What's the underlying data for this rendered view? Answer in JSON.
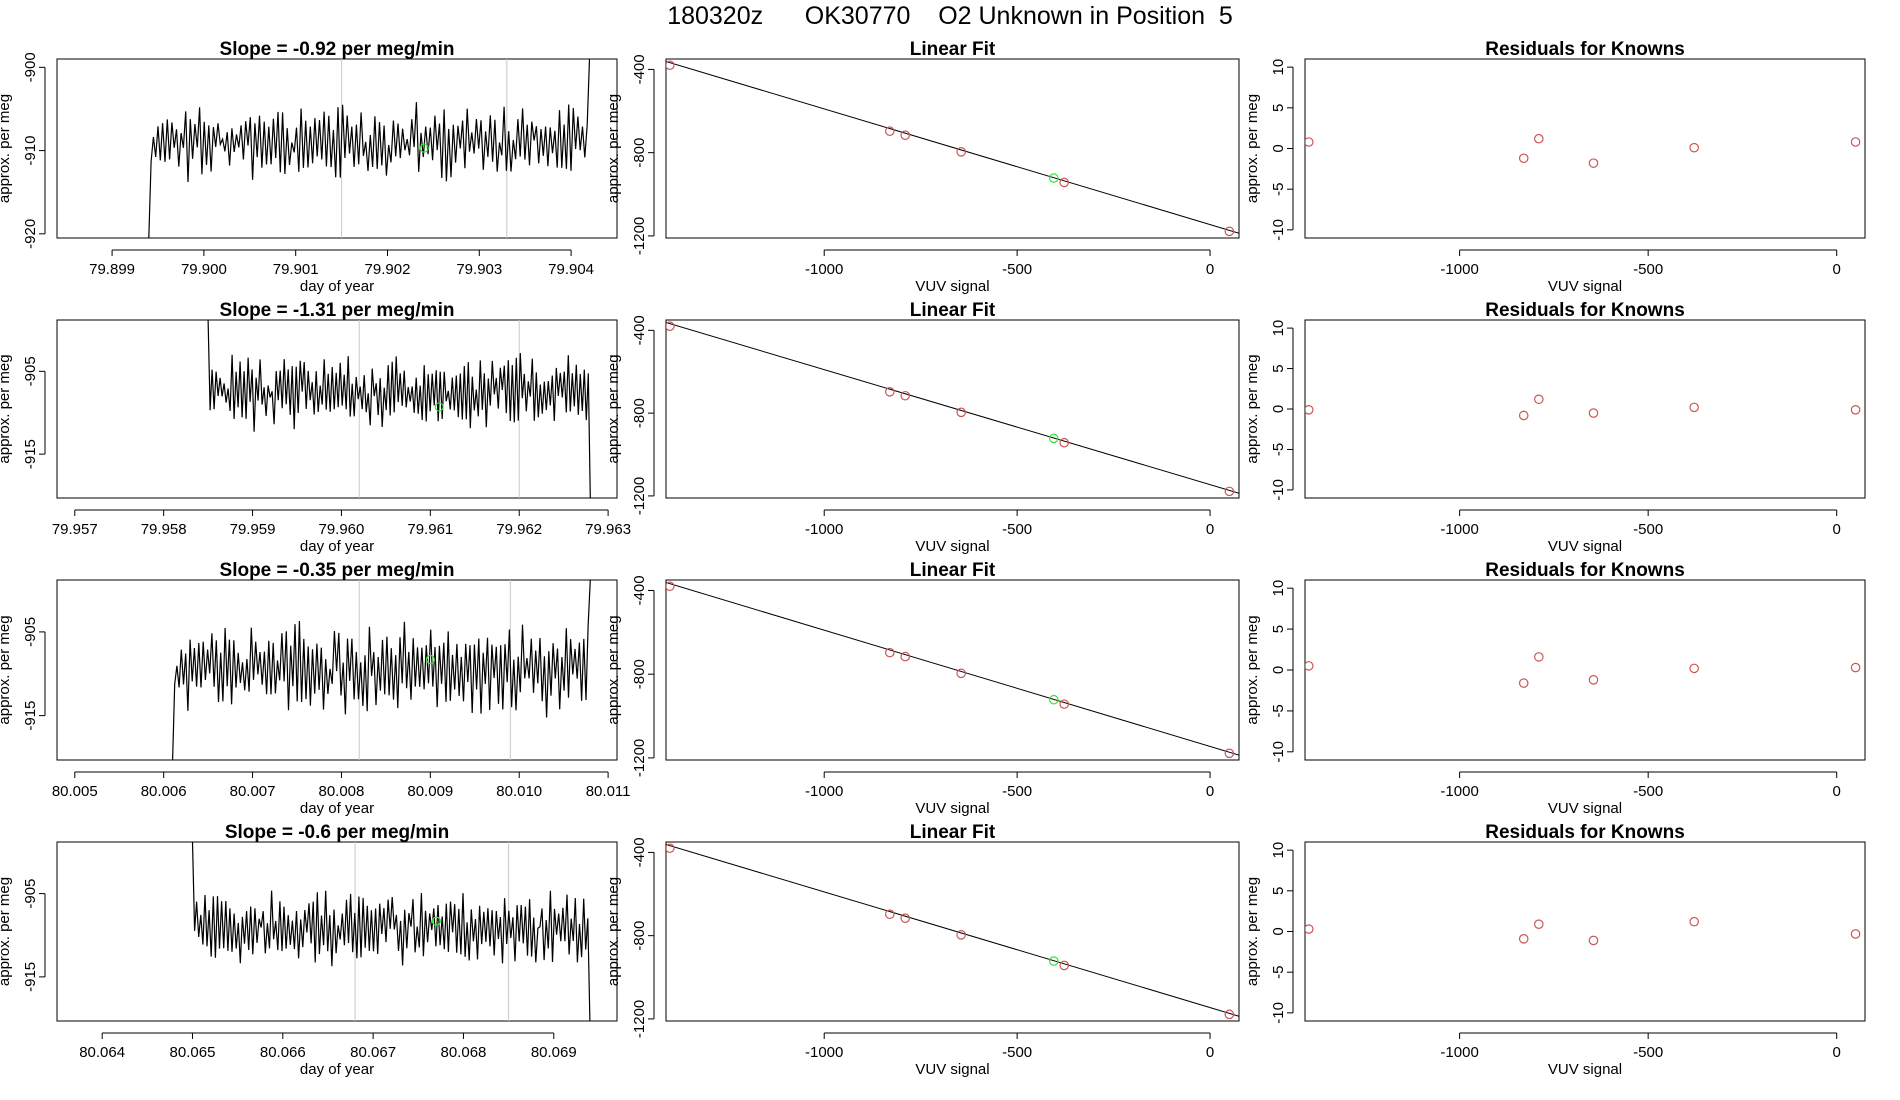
{
  "page": {
    "title": "180320z      OK30770    O2 Unknown in Position  5"
  },
  "colors": {
    "trace": "#000000",
    "known_points": "#cd5555",
    "unknown_point": "#32e632",
    "cycle_markers": "#c8c8c8",
    "axis": "#000000"
  },
  "chart_data": [
    {
      "type": "line",
      "title": "Slope =  -0.92  per meg/min",
      "xlabel": "day of year",
      "ylabel": "approx. per meg",
      "xlim": [
        79.8984,
        79.9045
      ],
      "ylim": [
        -920.5,
        -899
      ],
      "xticks": [
        79.899,
        79.9,
        79.901,
        79.902,
        79.903,
        79.904
      ],
      "xtick_labels": [
        "79.899",
        "79.900",
        "79.901",
        "79.902",
        "79.903",
        "79.904"
      ],
      "yticks": [
        -920,
        -910,
        -900
      ],
      "ytick_labels": [
        "-920",
        "-910",
        "-900"
      ],
      "vertical_markers": [
        79.9015,
        79.9033
      ],
      "unknown_point": {
        "x": 79.9024,
        "y": -909.7
      },
      "trace": {
        "start": 79.8994,
        "end": 79.9042,
        "base": -909,
        "spread": 3,
        "amplitude": 3.5,
        "seed": 11,
        "head_y": -920.5,
        "tail_y": -899
      }
    },
    {
      "type": "scatter",
      "title": "Linear Fit",
      "xlabel": "VUV signal",
      "ylabel": "approx. per meg",
      "xlim": [
        -1410,
        75
      ],
      "ylim": [
        -1210,
        -350
      ],
      "xticks": [
        -1000,
        -500,
        0
      ],
      "xtick_labels": [
        "-1000",
        "-500",
        "0"
      ],
      "yticks": [
        -1200,
        -800,
        -400
      ],
      "ytick_labels": [
        "-1200",
        "-800",
        "-400"
      ],
      "fit_line": {
        "x": [
          -1410,
          75
        ],
        "y": [
          -362,
          -1187
        ]
      },
      "known_points": {
        "x": [
          -1400,
          -830,
          -790,
          -645,
          -378,
          50
        ],
        "y": [
          -380,
          -697,
          -716,
          -796,
          -943,
          -1178
        ]
      },
      "unknown_point": {
        "x": -405,
        "y": -922
      }
    },
    {
      "type": "scatter",
      "title": "Residuals for Knowns",
      "xlabel": "VUV signal",
      "ylabel": "approx. per meg",
      "xlim": [
        -1410,
        75
      ],
      "ylim": [
        -11,
        11
      ],
      "xticks": [
        -1000,
        -500,
        0
      ],
      "xtick_labels": [
        "-1000",
        "-500",
        "0"
      ],
      "yticks": [
        -10,
        -5,
        0,
        5,
        10
      ],
      "ytick_labels": [
        "-10",
        "-5",
        "0",
        "5",
        "10"
      ],
      "known_points": {
        "x": [
          -1400,
          -830,
          -790,
          -645,
          -378,
          50
        ],
        "y": [
          0.8,
          -1.2,
          1.2,
          -1.8,
          0.1,
          0.8
        ]
      }
    },
    {
      "type": "line",
      "title": "Slope =  -1.31  per meg/min",
      "xlabel": "day of year",
      "ylabel": "approx. per meg",
      "xlim": [
        79.9568,
        79.9631
      ],
      "ylim": [
        -920.3,
        -898.8
      ],
      "xticks": [
        79.957,
        79.958,
        79.959,
        79.96,
        79.961,
        79.962,
        79.963
      ],
      "xtick_labels": [
        "79.957",
        "79.958",
        "79.959",
        "79.960",
        "79.961",
        "79.962",
        "79.963"
      ],
      "yticks": [
        -915,
        -905
      ],
      "ytick_labels": [
        "-915",
        "-905"
      ],
      "vertical_markers": [
        79.9602,
        79.962
      ],
      "unknown_point": {
        "x": 79.9611,
        "y": -909.3
      },
      "trace": {
        "start": 79.9585,
        "end": 79.9628,
        "base": -907.5,
        "spread": 3,
        "amplitude": 3.8,
        "seed": 23,
        "head_y": -898.8,
        "tail_y": -920.3
      }
    },
    {
      "type": "scatter",
      "title": "Linear Fit",
      "xlabel": "VUV signal",
      "ylabel": "approx. per meg",
      "xlim": [
        -1410,
        75
      ],
      "ylim": [
        -1210,
        -350
      ],
      "xticks": [
        -1000,
        -500,
        0
      ],
      "xtick_labels": [
        "-1000",
        "-500",
        "0"
      ],
      "yticks": [
        -1200,
        -800,
        -400
      ],
      "ytick_labels": [
        "-1200",
        "-800",
        "-400"
      ],
      "fit_line": {
        "x": [
          -1410,
          75
        ],
        "y": [
          -362,
          -1187
        ]
      },
      "known_points": {
        "x": [
          -1400,
          -830,
          -790,
          -645,
          -378,
          50
        ],
        "y": [
          -380,
          -697,
          -716,
          -796,
          -943,
          -1178
        ]
      },
      "unknown_point": {
        "x": -405,
        "y": -922
      }
    },
    {
      "type": "scatter",
      "title": "Residuals for Knowns",
      "xlabel": "VUV signal",
      "ylabel": "approx. per meg",
      "xlim": [
        -1410,
        75
      ],
      "ylim": [
        -11,
        11
      ],
      "xticks": [
        -1000,
        -500,
        0
      ],
      "xtick_labels": [
        "-1000",
        "-500",
        "0"
      ],
      "yticks": [
        -10,
        -5,
        0,
        5,
        10
      ],
      "ytick_labels": [
        "-10",
        "-5",
        "0",
        "5",
        "10"
      ],
      "known_points": {
        "x": [
          -1400,
          -830,
          -790,
          -645,
          -378,
          50
        ],
        "y": [
          -0.1,
          -0.8,
          1.2,
          -0.5,
          0.2,
          -0.1
        ]
      }
    },
    {
      "type": "line",
      "title": "Slope =  -0.35  per meg/min",
      "xlabel": "day of year",
      "ylabel": "approx. per meg",
      "xlim": [
        80.0048,
        80.0111
      ],
      "ylim": [
        -920.3,
        -898.8
      ],
      "xticks": [
        80.005,
        80.006,
        80.007,
        80.008,
        80.009,
        80.01,
        80.011
      ],
      "xtick_labels": [
        "80.005",
        "80.006",
        "80.007",
        "80.008",
        "80.009",
        "80.010",
        "80.011"
      ],
      "yticks": [
        -915,
        -905
      ],
      "ytick_labels": [
        "-915",
        "-905"
      ],
      "vertical_markers": [
        80.0082,
        80.0099
      ],
      "unknown_point": {
        "x": 80.009,
        "y": -908.3
      },
      "trace": {
        "start": 80.0061,
        "end": 80.0108,
        "base": -909.5,
        "spread": 3,
        "amplitude": 4.5,
        "seed": 37,
        "head_y": -920.3,
        "tail_y": -898.8
      }
    },
    {
      "type": "scatter",
      "title": "Linear Fit",
      "xlabel": "VUV signal",
      "ylabel": "approx. per meg",
      "xlim": [
        -1410,
        75
      ],
      "ylim": [
        -1210,
        -350
      ],
      "xticks": [
        -1000,
        -500,
        0
      ],
      "xtick_labels": [
        "-1000",
        "-500",
        "0"
      ],
      "yticks": [
        -1200,
        -800,
        -400
      ],
      "ytick_labels": [
        "-1200",
        "-800",
        "-400"
      ],
      "fit_line": {
        "x": [
          -1410,
          75
        ],
        "y": [
          -362,
          -1187
        ]
      },
      "known_points": {
        "x": [
          -1400,
          -830,
          -790,
          -645,
          -378,
          50
        ],
        "y": [
          -380,
          -697,
          -716,
          -796,
          -943,
          -1178
        ]
      },
      "unknown_point": {
        "x": -405,
        "y": -922
      }
    },
    {
      "type": "scatter",
      "title": "Residuals for Knowns",
      "xlabel": "VUV signal",
      "ylabel": "approx. per meg",
      "xlim": [
        -1410,
        75
      ],
      "ylim": [
        -11,
        11
      ],
      "xticks": [
        -1000,
        -500,
        0
      ],
      "xtick_labels": [
        "-1000",
        "-500",
        "0"
      ],
      "yticks": [
        -10,
        -5,
        0,
        5,
        10
      ],
      "ytick_labels": [
        "-10",
        "-5",
        "0",
        "5",
        "10"
      ],
      "known_points": {
        "x": [
          -1400,
          -830,
          -790,
          -645,
          -378,
          50
        ],
        "y": [
          0.5,
          -1.6,
          1.6,
          -1.2,
          0.2,
          0.3
        ]
      }
    },
    {
      "type": "line",
      "title": "Slope =  -0.6  per meg/min",
      "xlabel": "day of year",
      "ylabel": "approx. per meg",
      "xlim": [
        80.0635,
        80.0697
      ],
      "ylim": [
        -920.3,
        -898.8
      ],
      "xticks": [
        80.064,
        80.065,
        80.066,
        80.067,
        80.068,
        80.069
      ],
      "xtick_labels": [
        "80.064",
        "80.065",
        "80.066",
        "80.067",
        "80.068",
        "80.069"
      ],
      "yticks": [
        -915,
        -905
      ],
      "ytick_labels": [
        "-915",
        "-905"
      ],
      "vertical_markers": [
        80.0668,
        80.0685
      ],
      "unknown_point": {
        "x": 80.0677,
        "y": -908.3
      },
      "trace": {
        "start": 80.065,
        "end": 80.0694,
        "base": -909,
        "spread": 3,
        "amplitude": 3.5,
        "seed": 51,
        "head_y": -898.8,
        "tail_y": -920.3
      }
    },
    {
      "type": "scatter",
      "title": "Linear Fit",
      "xlabel": "VUV signal",
      "ylabel": "approx. per meg",
      "xlim": [
        -1410,
        75
      ],
      "ylim": [
        -1210,
        -350
      ],
      "xticks": [
        -1000,
        -500,
        0
      ],
      "xtick_labels": [
        "-1000",
        "-500",
        "0"
      ],
      "yticks": [
        -1200,
        -800,
        -400
      ],
      "ytick_labels": [
        "-1200",
        "-800",
        "-400"
      ],
      "fit_line": {
        "x": [
          -1410,
          75
        ],
        "y": [
          -362,
          -1187
        ]
      },
      "known_points": {
        "x": [
          -1400,
          -830,
          -790,
          -645,
          -378,
          50
        ],
        "y": [
          -380,
          -697,
          -716,
          -796,
          -943,
          -1178
        ]
      },
      "unknown_point": {
        "x": -405,
        "y": -922
      }
    },
    {
      "type": "scatter",
      "title": "Residuals for Knowns",
      "xlabel": "VUV signal",
      "ylabel": "approx. per meg",
      "xlim": [
        -1410,
        75
      ],
      "ylim": [
        -11,
        11
      ],
      "xticks": [
        -1000,
        -500,
        0
      ],
      "xtick_labels": [
        "-1000",
        "-500",
        "0"
      ],
      "yticks": [
        -10,
        -5,
        0,
        5,
        10
      ],
      "ytick_labels": [
        "-10",
        "-5",
        "0",
        "5",
        "10"
      ],
      "known_points": {
        "x": [
          -1400,
          -830,
          -790,
          -645,
          -378,
          50
        ],
        "y": [
          0.3,
          -0.9,
          0.9,
          -1.1,
          1.2,
          -0.3
        ]
      }
    }
  ]
}
